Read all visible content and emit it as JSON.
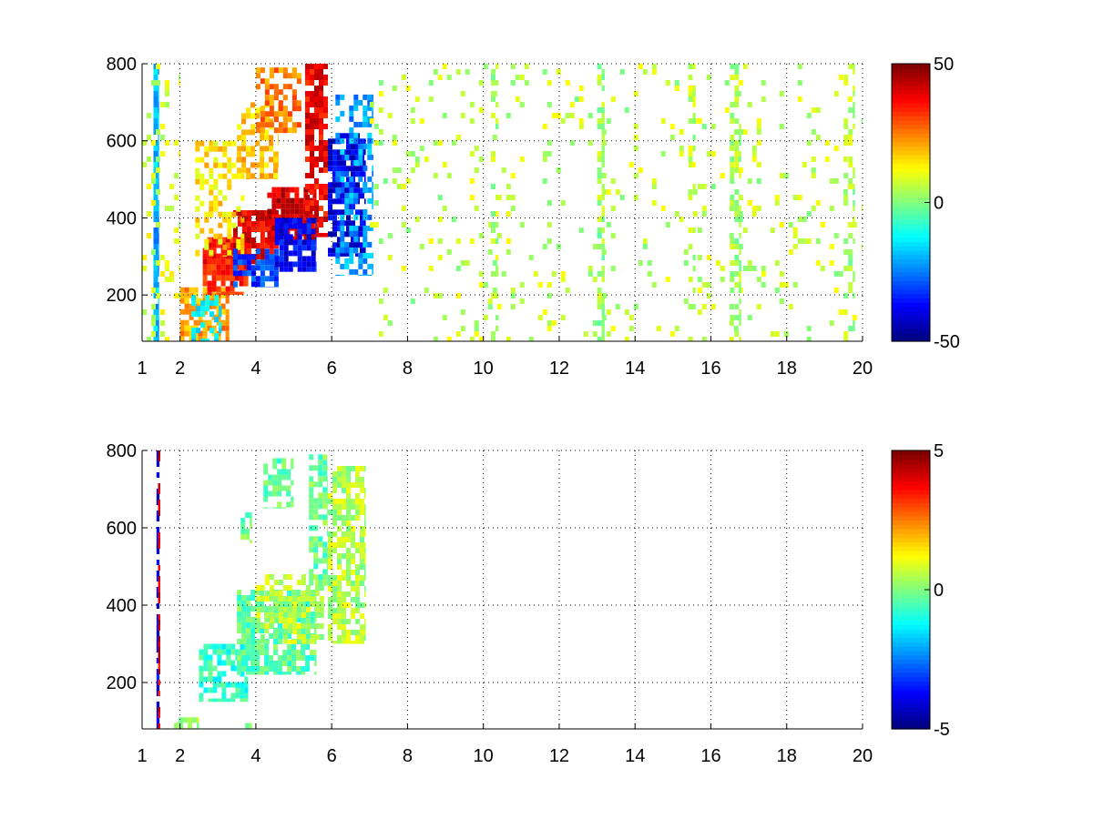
{
  "figure": {
    "background": "#ffffff"
  },
  "chart_data": [
    {
      "type": "heatmap",
      "title": "",
      "xlabel": "",
      "ylabel": "",
      "xlim": [
        1,
        20
      ],
      "ylim": [
        80,
        800
      ],
      "xticks": [
        {
          "value": 1,
          "label": "1"
        },
        {
          "value": 2,
          "label": "2"
        },
        {
          "value": 4,
          "label": "4"
        },
        {
          "value": 6,
          "label": "6"
        },
        {
          "value": 8,
          "label": "8"
        },
        {
          "value": 10,
          "label": "10"
        },
        {
          "value": 12,
          "label": "12"
        },
        {
          "value": 14,
          "label": "14"
        },
        {
          "value": 16,
          "label": "16"
        },
        {
          "value": 18,
          "label": "18"
        },
        {
          "value": 20,
          "label": "20"
        }
      ],
      "yticks": [
        {
          "value": 200,
          "label": "200"
        },
        {
          "value": 400,
          "label": "400"
        },
        {
          "value": 600,
          "label": "600"
        },
        {
          "value": 800,
          "label": "800"
        }
      ],
      "grid": true,
      "colormap": "jet",
      "colorbar": {
        "clim": [
          -50,
          50
        ],
        "ticks": [
          {
            "value": 50,
            "label": "50"
          },
          {
            "value": 0,
            "label": "0"
          },
          {
            "value": -50,
            "label": "-50"
          }
        ]
      },
      "blobs": [
        {
          "x": [
            1.3,
            1.45
          ],
          "y": [
            80,
            800
          ],
          "value": -20,
          "density": 0.9
        },
        {
          "x": [
            1.0,
            2.0
          ],
          "y": [
            80,
            800
          ],
          "value": 8,
          "density": 0.15
        },
        {
          "x": [
            2.0,
            3.3
          ],
          "y": [
            80,
            220
          ],
          "value": 22,
          "density": 0.75
        },
        {
          "x": [
            2.6,
            3.8
          ],
          "y": [
            200,
            350
          ],
          "value": 35,
          "density": 0.85
        },
        {
          "x": [
            3.4,
            4.6
          ],
          "y": [
            280,
            420
          ],
          "value": 40,
          "density": 0.85
        },
        {
          "x": [
            4.3,
            5.6
          ],
          "y": [
            330,
            480
          ],
          "value": 42,
          "density": 0.85
        },
        {
          "x": [
            2.4,
            3.7
          ],
          "y": [
            300,
            600
          ],
          "value": 15,
          "density": 0.4
        },
        {
          "x": [
            3.5,
            4.6
          ],
          "y": [
            500,
            700
          ],
          "value": 18,
          "density": 0.45
        },
        {
          "x": [
            4.0,
            5.2
          ],
          "y": [
            620,
            790
          ],
          "value": 25,
          "density": 0.65
        },
        {
          "x": [
            5.3,
            5.9
          ],
          "y": [
            350,
            800
          ],
          "value": 38,
          "density": 0.8
        },
        {
          "x": [
            2.3,
            3.1
          ],
          "y": [
            80,
            200
          ],
          "value": -15,
          "density": 0.45
        },
        {
          "x": [
            3.4,
            4.6
          ],
          "y": [
            220,
            320
          ],
          "value": -32,
          "density": 0.7
        },
        {
          "x": [
            4.5,
            5.6
          ],
          "y": [
            260,
            400
          ],
          "value": -38,
          "density": 0.75
        },
        {
          "x": [
            5.9,
            6.9
          ],
          "y": [
            300,
            620
          ],
          "value": -40,
          "density": 0.75
        },
        {
          "x": [
            6.1,
            7.1
          ],
          "y": [
            250,
            720
          ],
          "value": -22,
          "density": 0.45
        },
        {
          "x": [
            7.0,
            20.0
          ],
          "y": [
            80,
            800
          ],
          "value": 6,
          "density": 0.07
        },
        {
          "x": [
            13.0,
            13.2
          ],
          "y": [
            80,
            800
          ],
          "value": 3,
          "density": 0.55
        },
        {
          "x": [
            16.5,
            16.8
          ],
          "y": [
            80,
            800
          ],
          "value": 4,
          "density": 0.45
        },
        {
          "x": [
            10.2,
            10.4
          ],
          "y": [
            80,
            800
          ],
          "value": 5,
          "density": 0.35
        },
        {
          "x": [
            15.4,
            15.6
          ],
          "y": [
            80,
            800
          ],
          "value": 6,
          "density": 0.3
        },
        {
          "x": [
            19.5,
            19.8
          ],
          "y": [
            80,
            800
          ],
          "value": 4,
          "density": 0.3
        }
      ]
    },
    {
      "type": "heatmap",
      "title": "",
      "xlabel": "",
      "ylabel": "",
      "xlim": [
        1,
        20
      ],
      "ylim": [
        80,
        800
      ],
      "xticks": [
        {
          "value": 1,
          "label": "1"
        },
        {
          "value": 2,
          "label": "2"
        },
        {
          "value": 4,
          "label": "4"
        },
        {
          "value": 6,
          "label": "6"
        },
        {
          "value": 8,
          "label": "8"
        },
        {
          "value": 10,
          "label": "10"
        },
        {
          "value": 12,
          "label": "12"
        },
        {
          "value": 14,
          "label": "14"
        },
        {
          "value": 16,
          "label": "16"
        },
        {
          "value": 18,
          "label": "18"
        },
        {
          "value": 20,
          "label": "20"
        }
      ],
      "yticks": [
        {
          "value": 200,
          "label": "200"
        },
        {
          "value": 400,
          "label": "400"
        },
        {
          "value": 600,
          "label": "600"
        },
        {
          "value": 800,
          "label": "800"
        }
      ],
      "grid": true,
      "colormap": "jet",
      "colorbar": {
        "clim": [
          -5,
          5
        ],
        "ticks": [
          {
            "value": 5,
            "label": "5"
          },
          {
            "value": 0,
            "label": "0"
          },
          {
            "value": -5,
            "label": "-5"
          }
        ]
      },
      "blobs": [
        {
          "x": [
            1.38,
            1.46
          ],
          "y": [
            80,
            800
          ],
          "value": -4,
          "density": 0.8
        },
        {
          "x": [
            1.42,
            1.48
          ],
          "y": [
            80,
            800
          ],
          "value": 4,
          "density": 0.6
        },
        {
          "x": [
            1.6,
            2.5
          ],
          "y": [
            80,
            110
          ],
          "value": 0.3,
          "density": 0.55
        },
        {
          "x": [
            2.5,
            3.8
          ],
          "y": [
            150,
            300
          ],
          "value": -0.8,
          "density": 0.7
        },
        {
          "x": [
            3.5,
            5.6
          ],
          "y": [
            220,
            440
          ],
          "value": -0.3,
          "density": 0.75
        },
        {
          "x": [
            4.0,
            5.8
          ],
          "y": [
            300,
            480
          ],
          "value": 0.6,
          "density": 0.55
        },
        {
          "x": [
            4.2,
            5.0
          ],
          "y": [
            650,
            780
          ],
          "value": -0.3,
          "density": 0.55
        },
        {
          "x": [
            5.4,
            5.9
          ],
          "y": [
            450,
            790
          ],
          "value": -0.2,
          "density": 0.6
        },
        {
          "x": [
            5.9,
            6.9
          ],
          "y": [
            300,
            760
          ],
          "value": 0.5,
          "density": 0.7
        },
        {
          "x": [
            3.6,
            3.9
          ],
          "y": [
            560,
            640
          ],
          "value": -0.2,
          "density": 0.5
        },
        {
          "x": [
            3.6,
            3.9
          ],
          "y": [
            80,
            95
          ],
          "value": -0.3,
          "density": 0.4
        }
      ]
    }
  ]
}
